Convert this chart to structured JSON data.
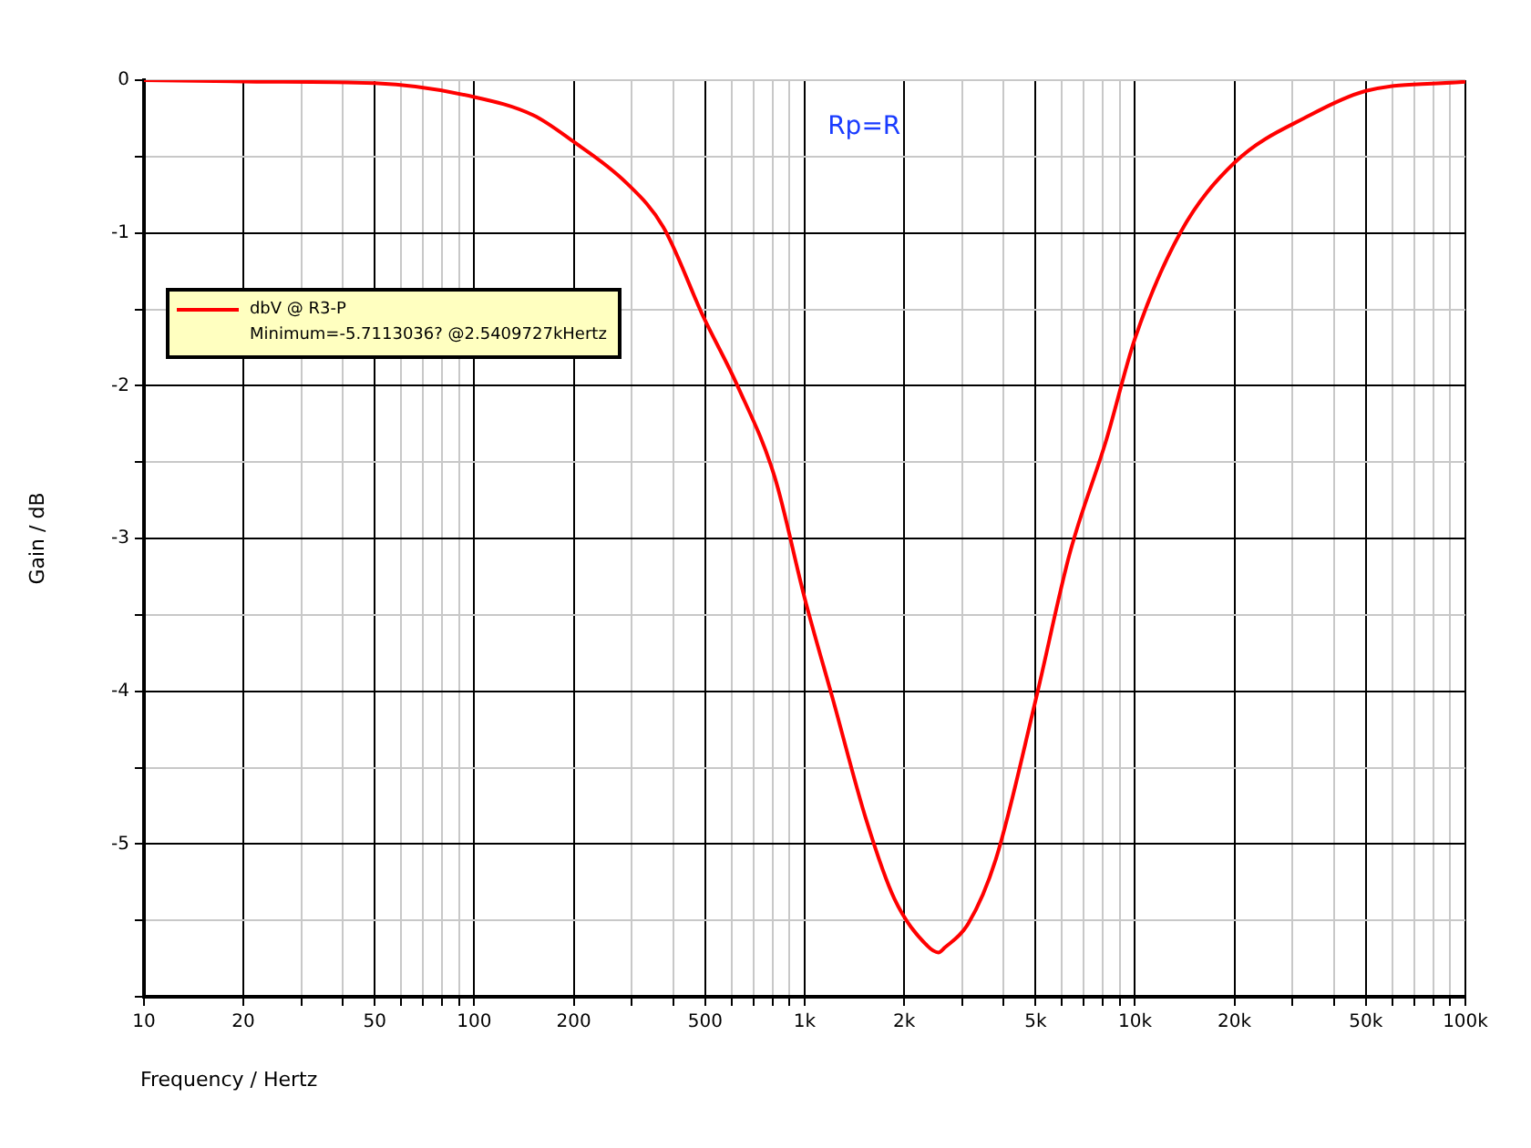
{
  "chart_data": {
    "type": "line",
    "xlabel": "Frequency / Hertz",
    "ylabel": "Gain / dB",
    "annotations": [
      "Rp=R",
      "Minimum=-5.7113036? @2.5409727kHertz"
    ],
    "series": [
      {
        "name": "dbV @ R3-P",
        "color": "#ff0000",
        "x": [
          10,
          21.9,
          50,
          100,
          151,
          196,
          288,
          373,
          494,
          626,
          812,
          1000,
          1220,
          1540,
          1870,
          2360,
          2540,
          2650,
          3130,
          3790,
          5000,
          6360,
          8200,
          10000,
          13700,
          20000,
          33800,
          50000,
          100000
        ],
        "values": [
          0,
          -0.01,
          -0.02,
          -0.11,
          -0.23,
          -0.39,
          -0.67,
          -0.96,
          -1.55,
          -2.0,
          -2.6,
          -3.39,
          -4.06,
          -4.85,
          -5.36,
          -5.67,
          -5.71,
          -5.68,
          -5.52,
          -5.1,
          -4.06,
          -3.09,
          -2.35,
          -1.69,
          -1.0,
          -0.54,
          -0.23,
          -0.07,
          -0.01
        ]
      }
    ],
    "log": "x",
    "xlim": [
      10,
      100000
    ],
    "ylim": [
      -6,
      0
    ],
    "xticks": [
      10,
      20,
      {
        "value": 30,
        "label": null
      },
      {
        "value": 40,
        "label": null
      },
      50,
      {
        "value": 60,
        "label": null
      },
      {
        "value": 70,
        "label": null
      },
      {
        "value": 80,
        "label": null
      },
      {
        "value": 90,
        "label": null
      },
      100,
      200,
      {
        "value": 300,
        "label": null
      },
      {
        "value": 400,
        "label": null
      },
      500,
      {
        "value": 600,
        "label": null
      },
      {
        "value": 700,
        "label": null
      },
      {
        "value": 800,
        "label": null
      },
      {
        "value": 900,
        "label": null
      },
      {
        "value": 1000,
        "label": "1k"
      },
      {
        "value": 2000,
        "label": "2k"
      },
      {
        "value": 3000,
        "label": null
      },
      {
        "value": 4000,
        "label": null
      },
      {
        "value": 5000,
        "label": "5k"
      },
      {
        "value": 6000,
        "label": null
      },
      {
        "value": 7000,
        "label": null
      },
      {
        "value": 8000,
        "label": null
      },
      {
        "value": 9000,
        "label": null
      },
      {
        "value": 10000,
        "label": "10k"
      },
      {
        "value": 20000,
        "label": "20k"
      },
      {
        "value": 30000,
        "label": null
      },
      {
        "value": 40000,
        "label": null
      },
      {
        "value": 50000,
        "label": "50k"
      },
      {
        "value": 60000,
        "label": null
      },
      {
        "value": 70000,
        "label": null
      },
      {
        "value": 80000,
        "label": null
      },
      {
        "value": 90000,
        "label": null
      },
      {
        "value": 100000,
        "label": "100k"
      }
    ],
    "yticks": [
      0,
      {
        "value": -0.5,
        "label": null
      },
      -1,
      {
        "value": -1.5,
        "label": null
      },
      -2,
      {
        "value": -2.5,
        "label": null
      },
      -3,
      {
        "value": -3.5,
        "label": null
      },
      -4,
      {
        "value": -4.5,
        "label": null
      },
      -5,
      {
        "value": -5.5,
        "label": null
      },
      {
        "value": -6,
        "label": null
      }
    ],
    "grid": true,
    "legend": "top left",
    "marker": "none",
    "line_style": "solid"
  }
}
